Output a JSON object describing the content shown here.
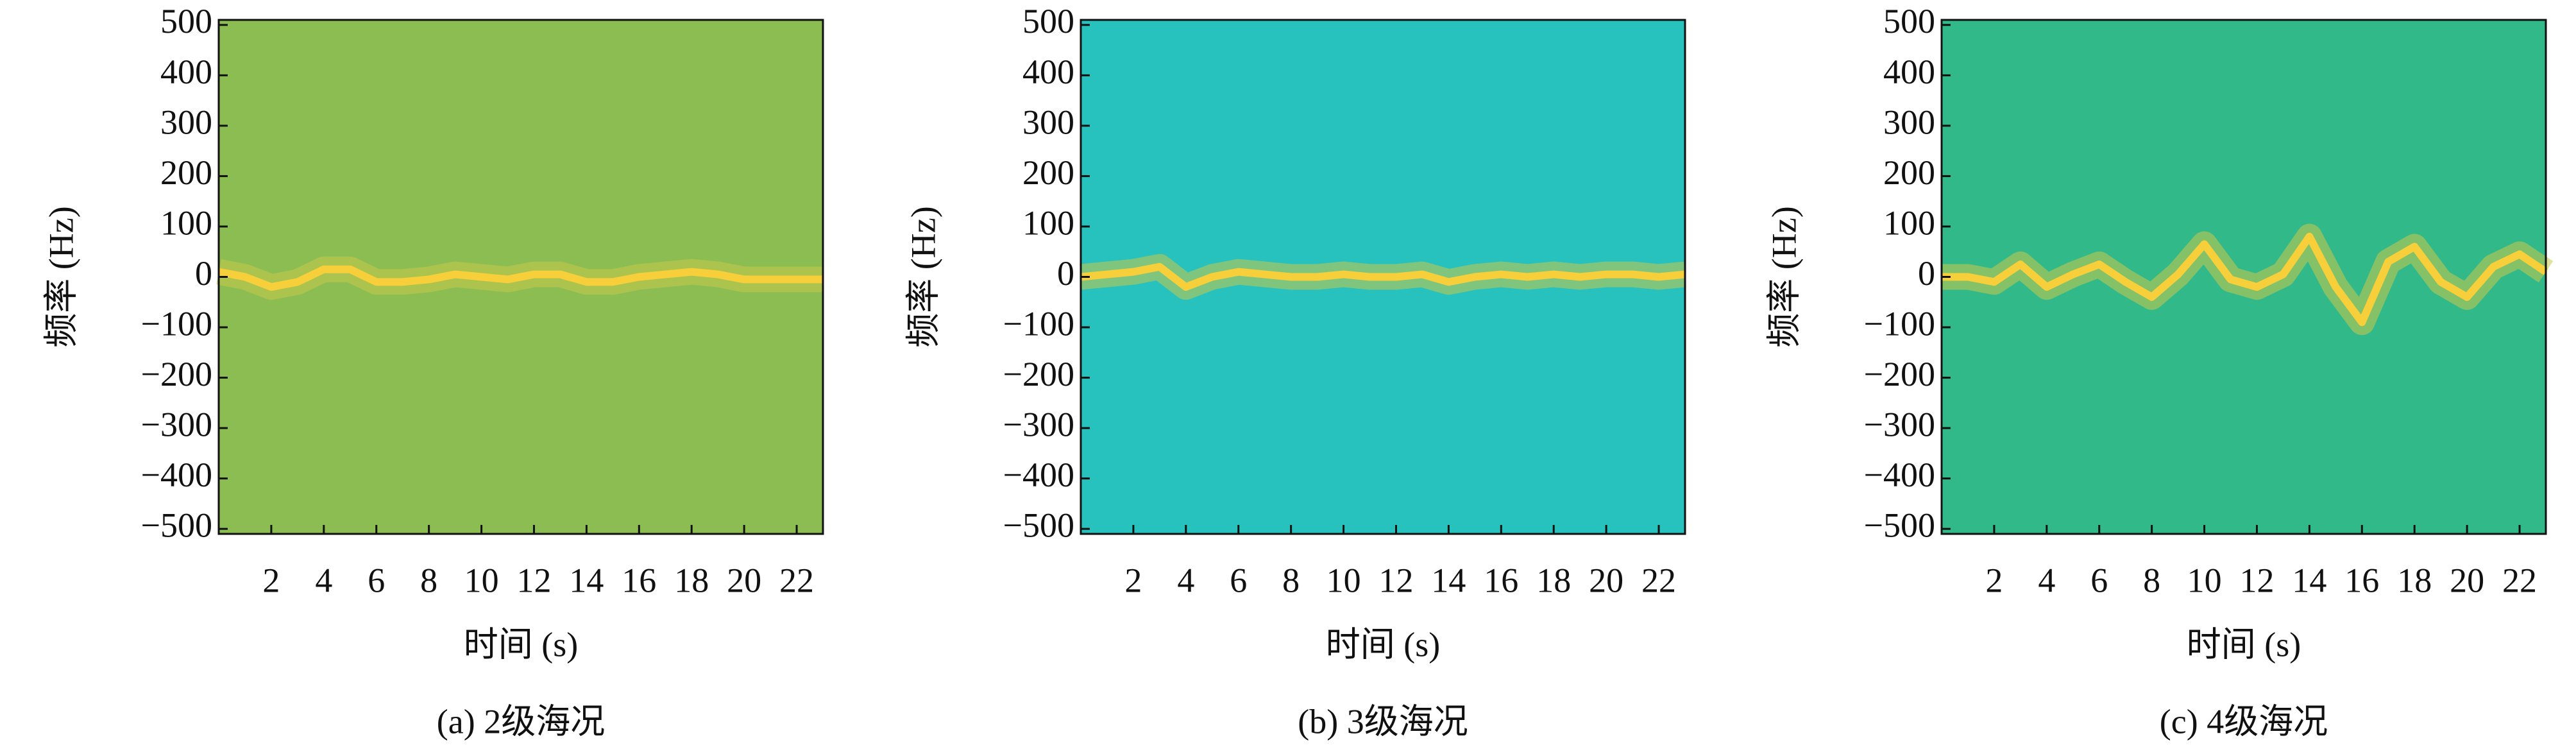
{
  "chart_data": [
    {
      "type": "spectrogram",
      "caption": "(a) 2级海况",
      "xlabel": "时间 (s)",
      "ylabel": "频率 (Hz)",
      "background": "#8bbd52",
      "color": "#f6cf3a",
      "x": [
        0,
        1,
        2,
        3,
        4,
        5,
        6,
        7,
        8,
        9,
        10,
        11,
        12,
        13,
        14,
        15,
        16,
        17,
        18,
        19,
        20,
        21,
        22,
        23
      ],
      "values": [
        10,
        0,
        -20,
        -10,
        15,
        15,
        -10,
        -10,
        -5,
        5,
        0,
        -5,
        5,
        5,
        -10,
        -10,
        0,
        5,
        10,
        5,
        -5,
        -5,
        -5,
        -5
      ],
      "xlim": [
        0,
        23
      ],
      "ylim": [
        -510,
        510
      ],
      "xticks": [
        2,
        4,
        6,
        8,
        10,
        12,
        14,
        16,
        18,
        20,
        22
      ],
      "yticks": [
        {
          "value": -500,
          "label": "−500"
        },
        {
          "value": -400,
          "label": "−400"
        },
        {
          "value": -300,
          "label": "−300"
        },
        {
          "value": -200,
          "label": "−200"
        },
        {
          "value": -100,
          "label": "−100"
        },
        0,
        100,
        200,
        300,
        400,
        500
      ]
    },
    {
      "type": "spectrogram",
      "caption": "(b) 3级海况",
      "xlabel": "时间 (s)",
      "ylabel": "频率 (Hz)",
      "background": "#27c2bd",
      "color": "#f6cf3a",
      "x": [
        0,
        1,
        2,
        3,
        4,
        5,
        6,
        7,
        8,
        9,
        10,
        11,
        12,
        13,
        14,
        15,
        16,
        17,
        18,
        19,
        20,
        21,
        22,
        23
      ],
      "values": [
        0,
        5,
        10,
        20,
        -20,
        0,
        10,
        5,
        0,
        0,
        5,
        0,
        0,
        5,
        -10,
        0,
        5,
        0,
        5,
        0,
        5,
        5,
        0,
        5
      ],
      "xlim": [
        0,
        23
      ],
      "ylim": [
        -510,
        510
      ],
      "xticks": [
        2,
        4,
        6,
        8,
        10,
        12,
        14,
        16,
        18,
        20,
        22
      ],
      "yticks": [
        {
          "value": -500,
          "label": "−500"
        },
        {
          "value": -400,
          "label": "−400"
        },
        {
          "value": -300,
          "label": "−300"
        },
        {
          "value": -200,
          "label": "−200"
        },
        {
          "value": -100,
          "label": "−100"
        },
        0,
        100,
        200,
        300,
        400,
        500
      ]
    },
    {
      "type": "spectrogram",
      "caption": "(c) 4级海况",
      "xlabel": "时间 (s)",
      "ylabel": "频率 (Hz)",
      "background": "#31b98a",
      "color": "#f6cf3a",
      "x": [
        0,
        1,
        2,
        3,
        4,
        5,
        6,
        7,
        8,
        9,
        10,
        11,
        12,
        13,
        14,
        15,
        16,
        17,
        18,
        19,
        20,
        21,
        22,
        23
      ],
      "values": [
        0,
        0,
        -10,
        25,
        -20,
        5,
        25,
        -10,
        -40,
        5,
        65,
        -5,
        -20,
        5,
        80,
        -20,
        -90,
        30,
        60,
        -10,
        -40,
        20,
        45,
        10
      ],
      "xlim": [
        0,
        23
      ],
      "ylim": [
        -510,
        510
      ],
      "xticks": [
        2,
        4,
        6,
        8,
        10,
        12,
        14,
        16,
        18,
        20,
        22
      ],
      "yticks": [
        {
          "value": -500,
          "label": "−500"
        },
        {
          "value": -400,
          "label": "−400"
        },
        {
          "value": -300,
          "label": "−300"
        },
        {
          "value": -200,
          "label": "−200"
        },
        {
          "value": -100,
          "label": "−100"
        },
        0,
        100,
        200,
        300,
        400,
        500
      ]
    }
  ]
}
